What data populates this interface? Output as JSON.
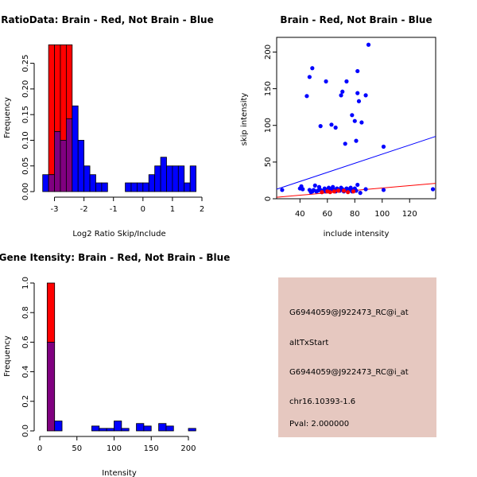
{
  "colors": {
    "brain": "#ff0000",
    "not_brain": "#0000ff",
    "overlap": "#800080",
    "panel_bg": "#e6c8c0",
    "pval": "#a00000"
  },
  "chart_data": [
    {
      "id": "ratio",
      "type": "bar",
      "title": "RatioData: Brain - Red, Not Brain - Blue",
      "xlabel": "Log2 Ratio Skip/Include",
      "ylabel": "Frequency",
      "xlim": [
        -3.5,
        2
      ],
      "ylim": [
        0,
        0.285
      ],
      "xticks": [
        -3,
        -2,
        -1,
        0,
        1,
        2
      ],
      "yticks": [
        0.0,
        0.05,
        0.1,
        0.15,
        0.2,
        0.25
      ],
      "ytick_labels": [
        "0.00",
        "0.05",
        "0.10",
        "0.15",
        "0.20",
        "0.25"
      ],
      "bin_width": 0.2,
      "series": [
        {
          "name": "Not Brain",
          "color": "blue",
          "bin_starts": [
            -3.4,
            -3.2,
            -3.0,
            -2.8,
            -2.6,
            -2.4,
            -2.2,
            -2.0,
            -1.8,
            -1.6,
            -1.4,
            -1.2,
            -1.0,
            -0.8,
            -0.6,
            -0.4,
            -0.2,
            0.0,
            0.2,
            0.4,
            0.6,
            0.8,
            1.0,
            1.2,
            1.4,
            1.6
          ],
          "values": [
            0.033,
            0.033,
            0.117,
            0.1,
            0.142,
            0.167,
            0.1,
            0.05,
            0.033,
            0.017,
            0.017,
            0.0,
            0.0,
            0.0,
            0.017,
            0.017,
            0.017,
            0.017,
            0.033,
            0.05,
            0.067,
            0.05,
            0.05,
            0.05,
            0.017,
            0.05
          ]
        },
        {
          "name": "Brain",
          "color": "red",
          "bin_starts": [
            -3.2,
            -3.0,
            -2.8,
            -2.6,
            -2.4
          ],
          "values": [
            0.286,
            0.286,
            0.286,
            0.286,
            0.0
          ]
        }
      ]
    },
    {
      "id": "scatter",
      "type": "scatter",
      "title": "Brain - Red, Not Brain - Blue",
      "xlabel": "include intensity",
      "ylabel": "skip intensity",
      "xlim": [
        23,
        139
      ],
      "ylim": [
        0,
        220
      ],
      "xticks": [
        40,
        60,
        80,
        100,
        120
      ],
      "yticks": [
        0,
        50,
        100,
        150,
        200
      ],
      "series": [
        {
          "name": "Not Brain",
          "color": "blue",
          "points": [
            [
              27,
              12
            ],
            [
              40,
              14
            ],
            [
              41,
              17
            ],
            [
              42,
              13
            ],
            [
              47,
              12
            ],
            [
              48,
              9
            ],
            [
              49,
              10
            ],
            [
              50,
              12
            ],
            [
              51,
              18
            ],
            [
              52,
              10
            ],
            [
              53,
              11
            ],
            [
              54,
              16
            ],
            [
              55,
              12
            ],
            [
              56,
              9
            ],
            [
              57,
              11
            ],
            [
              58,
              14
            ],
            [
              59,
              10
            ],
            [
              60,
              12
            ],
            [
              61,
              15
            ],
            [
              62,
              11
            ],
            [
              63,
              13
            ],
            [
              64,
              16
            ],
            [
              65,
              12
            ],
            [
              66,
              10
            ],
            [
              67,
              14
            ],
            [
              68,
              12
            ],
            [
              69,
              11
            ],
            [
              70,
              15
            ],
            [
              71,
              13
            ],
            [
              72,
              10
            ],
            [
              73,
              12
            ],
            [
              74,
              14
            ],
            [
              75,
              11
            ],
            [
              76,
              13
            ],
            [
              77,
              15
            ],
            [
              78,
              10
            ],
            [
              79,
              12
            ],
            [
              80,
              14
            ],
            [
              81,
              11
            ],
            [
              82,
              19
            ],
            [
              84,
              8
            ],
            [
              88,
              13
            ],
            [
              101,
              12
            ],
            [
              137,
              13
            ],
            [
              45,
              140
            ],
            [
              47,
              166
            ],
            [
              49,
              178
            ],
            [
              55,
              99
            ],
            [
              59,
              160
            ],
            [
              63,
              101
            ],
            [
              66,
              97
            ],
            [
              70,
              141
            ],
            [
              71,
              146
            ],
            [
              73,
              75
            ],
            [
              74,
              160
            ],
            [
              78,
              114
            ],
            [
              80,
              106
            ],
            [
              81,
              79
            ],
            [
              82,
              174
            ],
            [
              82,
              144
            ],
            [
              83,
              133
            ],
            [
              85,
              104
            ],
            [
              88,
              141
            ],
            [
              90,
              210
            ],
            [
              101,
              71
            ]
          ]
        },
        {
          "name": "Brain",
          "color": "red",
          "points": [
            [
              56,
              9
            ],
            [
              60,
              10
            ],
            [
              62,
              9
            ],
            [
              65,
              10
            ],
            [
              68,
              11
            ],
            [
              72,
              11
            ],
            [
              75,
              9
            ],
            [
              79,
              10
            ]
          ]
        }
      ],
      "fit_lines": [
        {
          "color": "blue",
          "x": [
            23,
            139
          ],
          "y": [
            13,
            85
          ]
        },
        {
          "color": "red",
          "x": [
            23,
            139
          ],
          "y": [
            2,
            21
          ]
        }
      ]
    },
    {
      "id": "intensity",
      "type": "bar",
      "title": "Gene Itensity: Brain - Red, Not Brain - Blue",
      "xlabel": "Intensity",
      "ylabel": "Frequency",
      "xlim": [
        0,
        215
      ],
      "ylim": [
        0,
        1.0
      ],
      "xticks": [
        0,
        50,
        100,
        150,
        200
      ],
      "yticks": [
        0.0,
        0.2,
        0.4,
        0.6,
        0.8,
        1.0
      ],
      "ytick_labels": [
        "0.0",
        "0.2",
        "0.4",
        "0.6",
        "0.8",
        "1.0"
      ],
      "bin_width": 10,
      "series": [
        {
          "name": "Not Brain",
          "color": "blue",
          "bin_starts": [
            10,
            20,
            30,
            40,
            50,
            60,
            70,
            80,
            90,
            100,
            110,
            120,
            130,
            140,
            150,
            160,
            170,
            180,
            190,
            200
          ],
          "values": [
            0.6,
            0.067,
            0.0,
            0.0,
            0.0,
            0.0,
            0.033,
            0.017,
            0.017,
            0.067,
            0.017,
            0.0,
            0.05,
            0.033,
            0.0,
            0.05,
            0.033,
            0.0,
            0.0,
            0.017
          ]
        },
        {
          "name": "Brain",
          "color": "red",
          "bin_starts": [
            10
          ],
          "values": [
            1.0
          ]
        }
      ]
    }
  ],
  "info_panel": {
    "probe_1": "G6944059@J922473_RC@i_at",
    "event_type": "altTxStart",
    "probe_2": "G6944059@J922473_RC@i_at",
    "location": "chr16.10393-1.6",
    "pval": "Pval: 2.000000"
  }
}
